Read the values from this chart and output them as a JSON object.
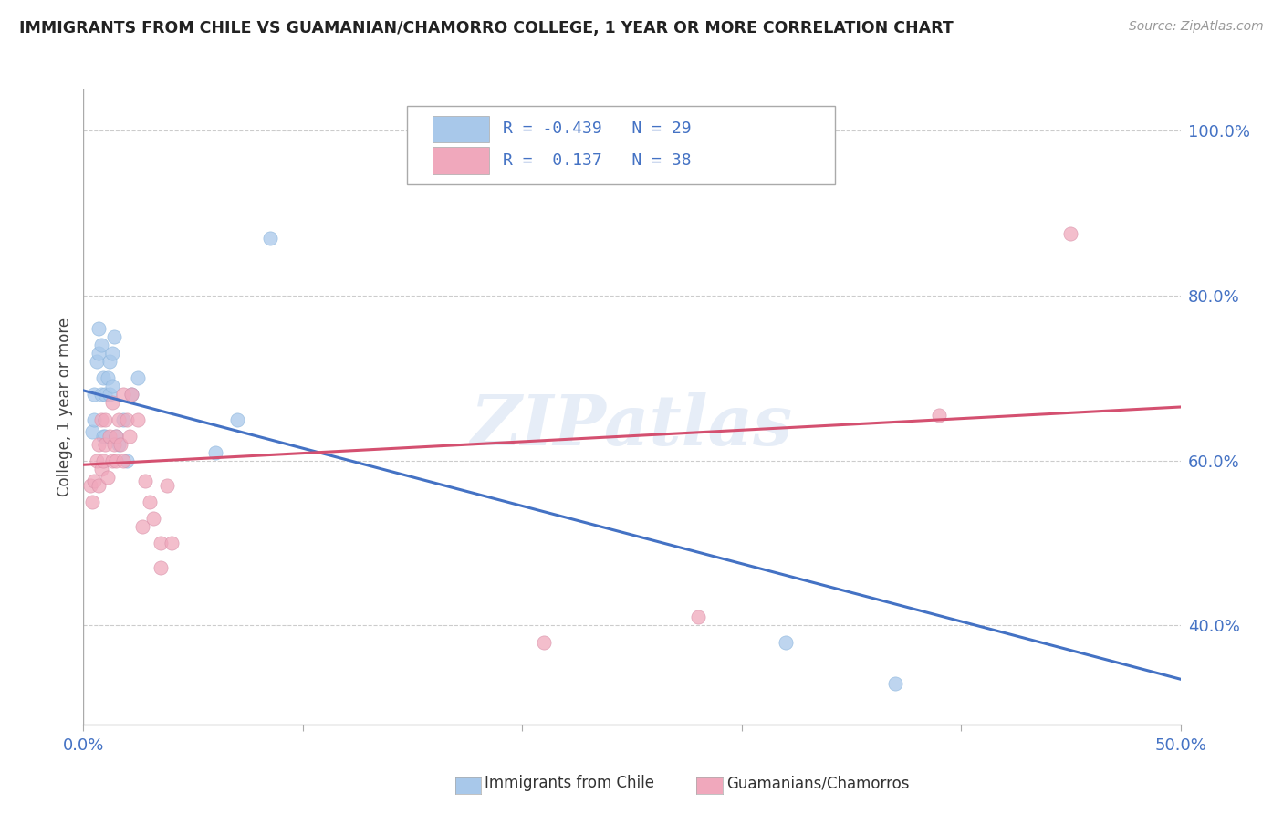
{
  "title": "IMMIGRANTS FROM CHILE VS GUAMANIAN/CHAMORRO COLLEGE, 1 YEAR OR MORE CORRELATION CHART",
  "source": "Source: ZipAtlas.com",
  "ylabel": "College, 1 year or more",
  "legend_blue": "Immigrants from Chile",
  "legend_pink": "Guamanians/Chamorros",
  "legend_blue_r": "-0.439",
  "legend_blue_n": "29",
  "legend_pink_r": "0.137",
  "legend_pink_n": "38",
  "blue_color": "#A8C8EA",
  "pink_color": "#F0A8BC",
  "blue_line_color": "#4472C4",
  "pink_line_color": "#D45070",
  "watermark": "ZIPatlas",
  "xlim": [
    0.0,
    0.5
  ],
  "ylim": [
    0.28,
    1.05
  ],
  "yticks": [
    0.4,
    0.6,
    0.8,
    1.0
  ],
  "ytick_labels": [
    "40.0%",
    "60.0%",
    "80.0%",
    "100.0%"
  ],
  "xticks": [
    0.0,
    0.5
  ],
  "xtick_labels": [
    "0.0%",
    "50.0%"
  ],
  "blue_scatter_x": [
    0.004,
    0.005,
    0.005,
    0.006,
    0.007,
    0.007,
    0.008,
    0.008,
    0.009,
    0.009,
    0.01,
    0.01,
    0.011,
    0.012,
    0.012,
    0.013,
    0.013,
    0.014,
    0.015,
    0.016,
    0.018,
    0.02,
    0.022,
    0.025,
    0.06,
    0.07,
    0.085,
    0.32,
    0.37
  ],
  "blue_scatter_y": [
    0.635,
    0.65,
    0.68,
    0.72,
    0.73,
    0.76,
    0.68,
    0.74,
    0.63,
    0.7,
    0.63,
    0.68,
    0.7,
    0.68,
    0.72,
    0.69,
    0.73,
    0.75,
    0.63,
    0.62,
    0.65,
    0.6,
    0.68,
    0.7,
    0.61,
    0.65,
    0.87,
    0.38,
    0.33
  ],
  "pink_scatter_x": [
    0.003,
    0.004,
    0.005,
    0.006,
    0.007,
    0.007,
    0.008,
    0.008,
    0.009,
    0.01,
    0.01,
    0.011,
    0.012,
    0.013,
    0.013,
    0.014,
    0.015,
    0.015,
    0.016,
    0.017,
    0.018,
    0.018,
    0.02,
    0.021,
    0.022,
    0.025,
    0.027,
    0.028,
    0.03,
    0.032,
    0.035,
    0.035,
    0.038,
    0.04,
    0.21,
    0.28,
    0.39,
    0.45
  ],
  "pink_scatter_y": [
    0.57,
    0.55,
    0.575,
    0.6,
    0.57,
    0.62,
    0.59,
    0.65,
    0.6,
    0.62,
    0.65,
    0.58,
    0.63,
    0.6,
    0.67,
    0.62,
    0.6,
    0.63,
    0.65,
    0.62,
    0.6,
    0.68,
    0.65,
    0.63,
    0.68,
    0.65,
    0.52,
    0.575,
    0.55,
    0.53,
    0.5,
    0.47,
    0.57,
    0.5,
    0.38,
    0.41,
    0.655,
    0.875
  ],
  "blue_line_x": [
    0.0,
    0.5
  ],
  "blue_line_y": [
    0.685,
    0.335
  ],
  "pink_line_x": [
    0.0,
    0.5
  ],
  "pink_line_y": [
    0.595,
    0.665
  ],
  "background_color": "#FFFFFF",
  "grid_color": "#CCCCCC"
}
